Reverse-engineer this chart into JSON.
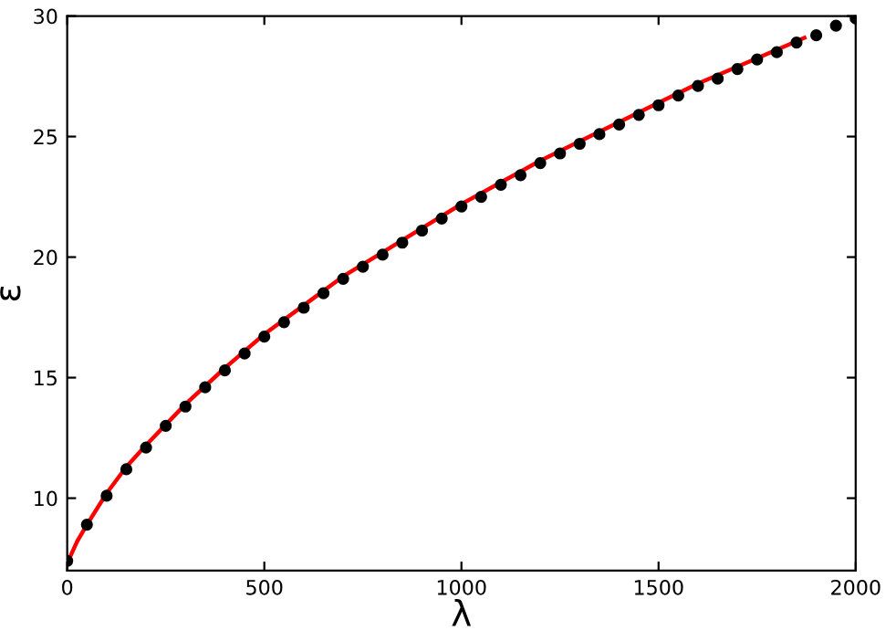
{
  "chart_data": {
    "type": "scatter",
    "xlabel": "λ",
    "ylabel": "ε",
    "xlim": [
      0,
      2000
    ],
    "xticks": [
      0,
      500,
      1000,
      1500,
      2000
    ],
    "ylim": [
      7,
      30
    ],
    "yticks": [
      10,
      15,
      20,
      25,
      30
    ],
    "grid": false,
    "legend": false,
    "series": [
      {
        "color": "#000000",
        "marker": "circle",
        "x": [
          0,
          50,
          100,
          150,
          200,
          250,
          300,
          350,
          400,
          450,
          500,
          550,
          600,
          650,
          700,
          750,
          800,
          850,
          900,
          950,
          1000,
          1050,
          1100,
          1150,
          1200,
          1250,
          1300,
          1350,
          1400,
          1450,
          1500,
          1550,
          1600,
          1650,
          1700,
          1750,
          1800,
          1850,
          1900,
          1950,
          2000
        ],
        "values": [
          7.4,
          8.9,
          10.1,
          11.2,
          12.1,
          13.0,
          13.8,
          14.6,
          15.3,
          16.0,
          16.7,
          17.3,
          17.9,
          18.5,
          19.1,
          19.6,
          20.1,
          20.6,
          21.1,
          21.6,
          22.1,
          22.5,
          23.0,
          23.4,
          23.9,
          24.3,
          24.7,
          25.1,
          25.5,
          25.9,
          26.3,
          26.7,
          27.1,
          27.4,
          27.8,
          28.2,
          28.5,
          28.9,
          29.2,
          29.6,
          29.9
        ]
      },
      {
        "type": "line",
        "color": "#ff0000",
        "marker": "none",
        "line_style": "solid",
        "x": [
          0,
          25,
          50,
          100,
          150,
          200,
          300,
          400,
          500,
          600,
          700,
          800,
          900,
          1000,
          1100,
          1200,
          1300,
          1400,
          1500,
          1600,
          1700,
          1800,
          1870
        ],
        "values": [
          7.3,
          8.2,
          8.9,
          10.2,
          11.3,
          12.2,
          13.9,
          15.4,
          16.8,
          18.0,
          19.2,
          20.2,
          21.2,
          22.2,
          23.1,
          24.0,
          24.8,
          25.6,
          26.4,
          27.2,
          27.9,
          28.6,
          29.1
        ]
      }
    ]
  }
}
